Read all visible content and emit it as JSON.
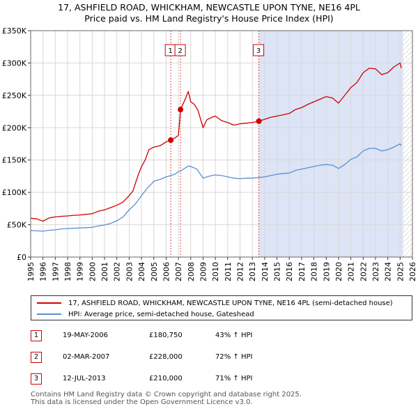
{
  "chart_data": {
    "type": "line",
    "title": "17, ASHFIELD ROAD, WHICKHAM, NEWCASTLE UPON TYNE, NE16 4PL",
    "subtitle": "Price paid vs. HM Land Registry's House Price Index (HPI)",
    "xlim": [
      1995,
      2026
    ],
    "ylim": [
      0,
      350000
    ],
    "x_ticks": [
      "1995",
      "1996",
      "1997",
      "1998",
      "1999",
      "2000",
      "2001",
      "2002",
      "2003",
      "2004",
      "2005",
      "2006",
      "2007",
      "2008",
      "2009",
      "2010",
      "2011",
      "2012",
      "2013",
      "2014",
      "2015",
      "2016",
      "2017",
      "2018",
      "2019",
      "2020",
      "2021",
      "2022",
      "2023",
      "2024",
      "2025",
      "2026"
    ],
    "y_ticks": [
      {
        "value": 0,
        "label": "£0"
      },
      {
        "value": 50000,
        "label": "£50K"
      },
      {
        "value": 100000,
        "label": "£100K"
      },
      {
        "value": 150000,
        "label": "£150K"
      },
      {
        "value": 200000,
        "label": "£200K"
      },
      {
        "value": 250000,
        "label": "£250K"
      },
      {
        "value": 300000,
        "label": "£300K"
      },
      {
        "value": 350000,
        "label": "£350K"
      }
    ],
    "grid": true,
    "shaded_region": {
      "from": 2013.53,
      "to": 2025.25,
      "color": "#dde4f6"
    },
    "hatched_region": {
      "from": 2025.25,
      "to": 2026
    },
    "series": [
      {
        "name": "17, ASHFIELD ROAD, WHICKHAM, NEWCASTLE UPON TYNE, NE16 4PL (semi-detached house)",
        "color": "#cc0000",
        "points": [
          [
            1995,
            60000
          ],
          [
            1995.5,
            59000
          ],
          [
            1996,
            55500
          ],
          [
            1996.5,
            60500
          ],
          [
            1997,
            62000
          ],
          [
            1997.5,
            63000
          ],
          [
            1998,
            63500
          ],
          [
            1998.5,
            64500
          ],
          [
            1999,
            65000
          ],
          [
            1999.5,
            66000
          ],
          [
            2000,
            67000
          ],
          [
            2000.5,
            71000
          ],
          [
            2001,
            73000
          ],
          [
            2001.5,
            76500
          ],
          [
            2002,
            80000
          ],
          [
            2002.5,
            85000
          ],
          [
            2003,
            95000
          ],
          [
            2003.3,
            102000
          ],
          [
            2003.7,
            125000
          ],
          [
            2004,
            140000
          ],
          [
            2004.3,
            150000
          ],
          [
            2004.6,
            166000
          ],
          [
            2005,
            170000
          ],
          [
            2005.5,
            172000
          ],
          [
            2006,
            178000
          ],
          [
            2006.38,
            180750
          ],
          [
            2006.7,
            184000
          ],
          [
            2007,
            188000
          ],
          [
            2007.17,
            228000
          ],
          [
            2007.5,
            242000
          ],
          [
            2007.8,
            256000
          ],
          [
            2008,
            240000
          ],
          [
            2008.3,
            236000
          ],
          [
            2008.6,
            226000
          ],
          [
            2009,
            200000
          ],
          [
            2009.3,
            212000
          ],
          [
            2009.7,
            216000
          ],
          [
            2010,
            218000
          ],
          [
            2010.5,
            211000
          ],
          [
            2011,
            208000
          ],
          [
            2011.5,
            204000
          ],
          [
            2012,
            206000
          ],
          [
            2012.5,
            207000
          ],
          [
            2013,
            208000
          ],
          [
            2013.53,
            210000
          ],
          [
            2014,
            213000
          ],
          [
            2014.5,
            216000
          ],
          [
            2015,
            218000
          ],
          [
            2015.5,
            220000
          ],
          [
            2016,
            222000
          ],
          [
            2016.5,
            228000
          ],
          [
            2017,
            231000
          ],
          [
            2017.5,
            236000
          ],
          [
            2018,
            240000
          ],
          [
            2018.5,
            244000
          ],
          [
            2019,
            248000
          ],
          [
            2019.5,
            246000
          ],
          [
            2020,
            238000
          ],
          [
            2020.5,
            250000
          ],
          [
            2021,
            262000
          ],
          [
            2021.5,
            270000
          ],
          [
            2022,
            285000
          ],
          [
            2022.5,
            292000
          ],
          [
            2023,
            291000
          ],
          [
            2023.5,
            282000
          ],
          [
            2024,
            285000
          ],
          [
            2024.5,
            294000
          ],
          [
            2025,
            300000
          ],
          [
            2025.1,
            292000
          ]
        ]
      },
      {
        "name": "HPI: Average price, semi-detached house, Gateshead",
        "color": "#5b8fd0",
        "points": [
          [
            1995,
            41000
          ],
          [
            1995.5,
            40500
          ],
          [
            1996,
            40000
          ],
          [
            1996.5,
            41500
          ],
          [
            1997,
            42000
          ],
          [
            1997.5,
            43500
          ],
          [
            1998,
            44000
          ],
          [
            1998.5,
            44500
          ],
          [
            1999,
            45000
          ],
          [
            1999.5,
            45500
          ],
          [
            2000,
            46000
          ],
          [
            2000.5,
            48000
          ],
          [
            2001,
            49500
          ],
          [
            2001.5,
            52000
          ],
          [
            2002,
            56000
          ],
          [
            2002.5,
            62000
          ],
          [
            2003,
            73000
          ],
          [
            2003.5,
            82000
          ],
          [
            2004,
            95000
          ],
          [
            2004.5,
            107000
          ],
          [
            2005,
            117000
          ],
          [
            2005.5,
            120000
          ],
          [
            2006,
            124000
          ],
          [
            2006.38,
            126000
          ],
          [
            2006.7,
            128000
          ],
          [
            2007,
            132000
          ],
          [
            2007.17,
            133000
          ],
          [
            2007.5,
            137000
          ],
          [
            2007.8,
            141000
          ],
          [
            2008,
            140000
          ],
          [
            2008.5,
            136000
          ],
          [
            2009,
            122000
          ],
          [
            2009.5,
            125000
          ],
          [
            2010,
            127000
          ],
          [
            2010.5,
            126000
          ],
          [
            2011,
            124000
          ],
          [
            2011.5,
            122000
          ],
          [
            2012,
            121000
          ],
          [
            2012.5,
            122000
          ],
          [
            2013,
            122000
          ],
          [
            2013.53,
            123000
          ],
          [
            2014,
            124000
          ],
          [
            2014.5,
            126000
          ],
          [
            2015,
            128000
          ],
          [
            2015.5,
            129000
          ],
          [
            2016,
            130000
          ],
          [
            2016.5,
            134000
          ],
          [
            2017,
            136000
          ],
          [
            2017.5,
            138000
          ],
          [
            2018,
            140000
          ],
          [
            2018.5,
            142000
          ],
          [
            2019,
            143000
          ],
          [
            2019.5,
            142000
          ],
          [
            2020,
            137000
          ],
          [
            2020.5,
            143000
          ],
          [
            2021,
            151000
          ],
          [
            2021.5,
            155000
          ],
          [
            2022,
            164000
          ],
          [
            2022.5,
            168000
          ],
          [
            2023,
            168000
          ],
          [
            2023.5,
            164000
          ],
          [
            2024,
            166000
          ],
          [
            2024.5,
            170000
          ],
          [
            2025,
            175000
          ],
          [
            2025.1,
            172000
          ]
        ]
      }
    ],
    "sales": [
      {
        "num": "1",
        "x": 2006.38,
        "price": 180750
      },
      {
        "num": "2",
        "x": 2007.17,
        "price": 228000
      },
      {
        "num": "3",
        "x": 2013.53,
        "price": 210000
      }
    ]
  },
  "legend": {
    "property_label": "17, ASHFIELD ROAD, WHICKHAM, NEWCASTLE UPON TYNE, NE16 4PL (semi-detached house)",
    "hpi_label": "HPI: Average price, semi-detached house, Gateshead"
  },
  "transactions": [
    {
      "num": "1",
      "date": "19-MAY-2006",
      "price": "£180,750",
      "hpi": "43% ↑ HPI"
    },
    {
      "num": "2",
      "date": "02-MAR-2007",
      "price": "£228,000",
      "hpi": "72% ↑ HPI"
    },
    {
      "num": "3",
      "date": "12-JUL-2013",
      "price": "£210,000",
      "hpi": "71% ↑ HPI"
    }
  ],
  "footer": {
    "line1": "Contains HM Land Registry data © Crown copyright and database right 2025.",
    "line2": "This data is licensed under the Open Government Licence v3.0."
  }
}
